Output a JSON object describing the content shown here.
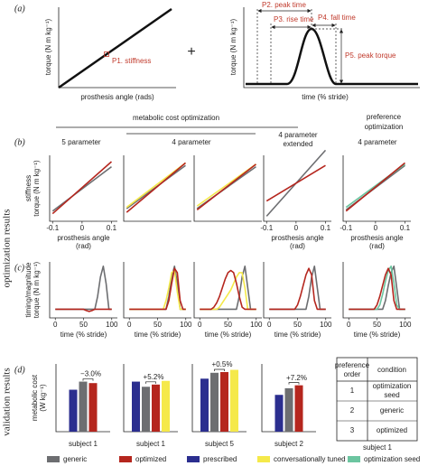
{
  "panel_labels": [
    "(a)",
    "(b)",
    "(c)",
    "(d)"
  ],
  "schematic": {
    "left_ylabel": "torque (N m kg⁻¹)",
    "left_xlabel": "prosthesis angle (rads)",
    "p1": "P1. stiffness",
    "plus": "+",
    "right_ylabel": "torque (N m kg⁻¹)",
    "right_xlabel": "time (% stride)",
    "p2": "P2. peak time",
    "p3": "P3. rise time",
    "p4": "P4. fall time",
    "p5": "P5. peak torque"
  },
  "headers": {
    "metabolic": "metabolic cost optimization",
    "preference": [
      "preference",
      "optimization"
    ],
    "five": "5 parameter",
    "four": "4 parameter",
    "four_ext": [
      "4 parameter",
      "extended"
    ],
    "four_pref": "4 parameter"
  },
  "side_labels": {
    "optimization": "optimization results",
    "validation": "validation results"
  },
  "chart_data": [
    {
      "type": "line",
      "x": [
        -0.1,
        0.1
      ],
      "xlim": [
        -0.11,
        0.12
      ],
      "ylim": [
        -1.3,
        1.3
      ],
      "xticks": [
        -0.1,
        0,
        0.1
      ],
      "xlabel": [
        "prosthesis angle",
        "(rad)"
      ],
      "ylabel": [
        "stiffness",
        "torque (N m kg⁻¹)"
      ],
      "series": [
        {
          "color": "#6d6e71",
          "values": [
            -0.9,
            0.85
          ]
        },
        {
          "color": "#b5261e",
          "values": [
            -1.0,
            1.05
          ]
        }
      ]
    },
    {
      "type": "line",
      "x": [
        -0.1,
        0.1
      ],
      "xlim": [
        -0.11,
        0.12
      ],
      "ylim": [
        -1.3,
        1.3
      ],
      "series": [
        {
          "color": "#6d6e71",
          "values": [
            -0.8,
            0.9
          ]
        },
        {
          "color": "#f5e94a",
          "values": [
            -0.75,
            1.0
          ]
        },
        {
          "color": "#b5261e",
          "values": [
            -0.95,
            1.0
          ]
        }
      ]
    },
    {
      "type": "line",
      "x": [
        -0.1,
        0.1
      ],
      "xlim": [
        -0.11,
        0.12
      ],
      "ylim": [
        -1.3,
        1.3
      ],
      "series": [
        {
          "color": "#6d6e71",
          "values": [
            -0.8,
            0.85
          ]
        },
        {
          "color": "#f5e94a",
          "values": [
            -0.7,
            0.95
          ]
        },
        {
          "color": "#b5261e",
          "values": [
            -0.85,
            0.95
          ]
        }
      ]
    },
    {
      "type": "line",
      "x": [
        -0.1,
        0.1
      ],
      "xlim": [
        -0.11,
        0.12
      ],
      "ylim": [
        -1.3,
        1.3
      ],
      "xticks": [
        -0.1,
        0,
        0.1
      ],
      "xlabel": [
        "prosthesis angle",
        "(rad)"
      ],
      "series": [
        {
          "color": "#6d6e71",
          "values": [
            -1.1,
            1.5
          ]
        },
        {
          "color": "#b5261e",
          "values": [
            -0.5,
            0.9
          ]
        }
      ]
    },
    {
      "type": "line",
      "x": [
        -0.1,
        0.1
      ],
      "xlim": [
        -0.11,
        0.12
      ],
      "ylim": [
        -1.3,
        1.3
      ],
      "xticks": [
        -0.1,
        0,
        0.1
      ],
      "xlabel": [
        "prosthesis angle",
        "(rad)"
      ],
      "series": [
        {
          "color": "#6d6e71",
          "values": [
            -0.85,
            0.9
          ]
        },
        {
          "color": "#6cc5a0",
          "values": [
            -0.75,
            0.95
          ]
        },
        {
          "color": "#b5261e",
          "values": [
            -0.9,
            1.0
          ]
        }
      ]
    },
    {
      "type": "line",
      "x": [
        0,
        5,
        10,
        15,
        20,
        25,
        30,
        35,
        40,
        45,
        50,
        55,
        60,
        65,
        70,
        75,
        80,
        85,
        90,
        95,
        100
      ],
      "xlim": [
        -10,
        110
      ],
      "ylim": [
        -0.2,
        1.1
      ],
      "xticks": [
        0,
        50,
        100
      ],
      "xlabel": "time (% stride)",
      "ylabel": [
        "timing/magnitude",
        "torque (N m kg⁻¹)"
      ],
      "series": [
        {
          "color": "#6d6e71",
          "values": [
            0,
            0,
            0,
            0,
            0,
            0,
            0,
            0,
            0,
            0,
            0,
            0,
            0,
            0,
            0,
            0.3,
            0.75,
            1,
            0.6,
            0,
            0
          ]
        },
        {
          "color": "#b5261e",
          "values": [
            0,
            0,
            0,
            0,
            0,
            0,
            0,
            0,
            0,
            0,
            0,
            -0.03,
            -0.05,
            -0.03,
            0,
            0,
            0,
            0,
            0,
            0,
            0
          ]
        }
      ]
    },
    {
      "type": "line",
      "x": [
        0,
        5,
        10,
        15,
        20,
        25,
        30,
        35,
        40,
        45,
        50,
        55,
        60,
        65,
        70,
        75,
        80,
        85,
        90,
        95,
        100
      ],
      "xlim": [
        -10,
        110
      ],
      "ylim": [
        -0.2,
        1.1
      ],
      "xticks": [
        0,
        50,
        100
      ],
      "xlabel": "time (% stride)",
      "series": [
        {
          "color": "#6d6e71",
          "values": [
            0,
            0,
            0,
            0,
            0,
            0,
            0,
            0,
            0,
            0,
            0,
            0,
            0,
            0,
            0.3,
            0.75,
            1,
            0.6,
            0,
            0,
            0
          ]
        },
        {
          "color": "#f5e94a",
          "values": [
            0,
            0,
            0,
            0,
            0,
            0,
            0,
            0,
            0,
            0,
            0,
            0,
            0,
            0.2,
            0.5,
            0.85,
            0.9,
            0.4,
            0,
            0,
            0
          ]
        },
        {
          "color": "#b5261e",
          "values": [
            0,
            0,
            0,
            0,
            0,
            0,
            0,
            0,
            0,
            0,
            0,
            0,
            0,
            0,
            0.2,
            0.6,
            0.95,
            0.85,
            0.2,
            0,
            0
          ]
        }
      ]
    },
    {
      "type": "line",
      "x": [
        0,
        5,
        10,
        15,
        20,
        25,
        30,
        35,
        40,
        45,
        50,
        55,
        60,
        65,
        70,
        75,
        80,
        85,
        90,
        95,
        100
      ],
      "xlim": [
        -10,
        110
      ],
      "ylim": [
        -0.2,
        1.1
      ],
      "xticks": [
        0,
        50,
        100
      ],
      "xlabel": "time (% stride)",
      "series": [
        {
          "color": "#6d6e71",
          "values": [
            0,
            0,
            0,
            0,
            0,
            0,
            0,
            0,
            0,
            0,
            0,
            0,
            0,
            0,
            0.3,
            0.75,
            1,
            0.5,
            0,
            0,
            0
          ]
        },
        {
          "color": "#f5e94a",
          "values": [
            0,
            0,
            0,
            0,
            0,
            0,
            0,
            0.05,
            0.15,
            0.25,
            0.35,
            0.45,
            0.6,
            0.75,
            0.85,
            0.85,
            0.5,
            0,
            0,
            0,
            0
          ]
        },
        {
          "color": "#b5261e",
          "values": [
            0,
            0,
            0,
            0,
            0,
            0.05,
            0.15,
            0.3,
            0.5,
            0.7,
            0.85,
            0.9,
            0.85,
            0.6,
            0.3,
            0.05,
            0,
            0,
            0,
            0,
            0
          ]
        }
      ]
    },
    {
      "type": "line",
      "x": [
        0,
        5,
        10,
        15,
        20,
        25,
        30,
        35,
        40,
        45,
        50,
        55,
        60,
        65,
        70,
        75,
        80,
        85,
        90,
        95,
        100
      ],
      "xlim": [
        -10,
        110
      ],
      "ylim": [
        -0.2,
        1.1
      ],
      "xticks": [
        0,
        50,
        100
      ],
      "xlabel": "time (% stride)",
      "series": [
        {
          "color": "#6d6e71",
          "values": [
            0,
            0,
            0,
            0,
            0,
            0,
            0,
            0,
            0,
            0,
            0,
            0,
            0,
            0,
            0.3,
            0.75,
            1,
            0.5,
            0,
            0,
            0
          ]
        },
        {
          "color": "#b5261e",
          "values": [
            0,
            0,
            0,
            0,
            0,
            0,
            0,
            0,
            0,
            0,
            0.1,
            0.3,
            0.55,
            0.8,
            0.95,
            0.8,
            0.2,
            0,
            0,
            0,
            0
          ]
        }
      ]
    },
    {
      "type": "line",
      "x": [
        0,
        5,
        10,
        15,
        20,
        25,
        30,
        35,
        40,
        45,
        50,
        55,
        60,
        65,
        70,
        75,
        80,
        85,
        90,
        95,
        100
      ],
      "xlim": [
        -10,
        110
      ],
      "ylim": [
        -0.2,
        1.1
      ],
      "xticks": [
        0,
        50,
        100
      ],
      "xlabel": "time (% stride)",
      "series": [
        {
          "color": "#6d6e71",
          "values": [
            0,
            0,
            0,
            0,
            0,
            0,
            0,
            0,
            0,
            0,
            0,
            0,
            0,
            0.2,
            0.55,
            0.85,
            1,
            0.5,
            0,
            0,
            0
          ]
        },
        {
          "color": "#6cc5a0",
          "values": [
            0,
            0,
            0,
            0,
            0,
            0,
            0,
            0,
            0,
            0,
            0,
            0.1,
            0.35,
            0.65,
            0.9,
            1,
            0.6,
            0.1,
            0,
            0,
            0
          ]
        },
        {
          "color": "#b5261e",
          "values": [
            0,
            0,
            0,
            0,
            0,
            0,
            0,
            0,
            0,
            0,
            0.1,
            0.3,
            0.55,
            0.8,
            0.95,
            0.8,
            0.2,
            0,
            0,
            0,
            0
          ]
        }
      ]
    },
    {
      "type": "bar",
      "ylim": [
        0,
        4.6
      ],
      "xlabel": "subject 1",
      "ylabel": [
        "metabolic cost",
        "(W kg⁻¹)"
      ],
      "annotation": "−3.0%",
      "values": [
        2.85,
        3.4,
        3.3
      ],
      "colors": [
        "#2b2e8f",
        "#6d6e71",
        "#b5261e"
      ]
    },
    {
      "type": "bar",
      "ylim": [
        0,
        4.6
      ],
      "xlabel": "subject 1",
      "annotation": "+5.2%",
      "values": [
        3.4,
        3.05,
        3.2,
        3.45
      ],
      "colors": [
        "#2b2e8f",
        "#6d6e71",
        "#b5261e",
        "#f5e94a"
      ]
    },
    {
      "type": "bar",
      "ylim": [
        0,
        4.6
      ],
      "xlabel": "subject 5",
      "annotation": "+0.5%",
      "values": [
        3.6,
        4.0,
        4.05,
        4.2
      ],
      "colors": [
        "#2b2e8f",
        "#6d6e71",
        "#b5261e",
        "#f5e94a"
      ]
    },
    {
      "type": "bar",
      "ylim": [
        0,
        4.6
      ],
      "xlabel": "subject 2",
      "annotation": "+7.2%",
      "values": [
        2.5,
        2.95,
        3.15
      ],
      "colors": [
        "#2b2e8f",
        "#6d6e71",
        "#b5261e"
      ]
    }
  ],
  "table": {
    "header": [
      [
        "preference",
        "order"
      ],
      "condition"
    ],
    "rows": [
      [
        "1",
        [
          "optimization",
          "seed"
        ]
      ],
      [
        "2",
        "generic"
      ],
      [
        "3",
        "optimized"
      ]
    ],
    "caption": "subject 1"
  },
  "legend": [
    {
      "name": "generic",
      "color": "#6d6e71"
    },
    {
      "name": "optimized",
      "color": "#b5261e"
    },
    {
      "name": "prescribed",
      "color": "#2b2e8f"
    },
    {
      "name": "conversationally tuned",
      "color": "#f5e94a"
    },
    {
      "name": "optimization seed",
      "color": "#6cc5a0"
    }
  ]
}
